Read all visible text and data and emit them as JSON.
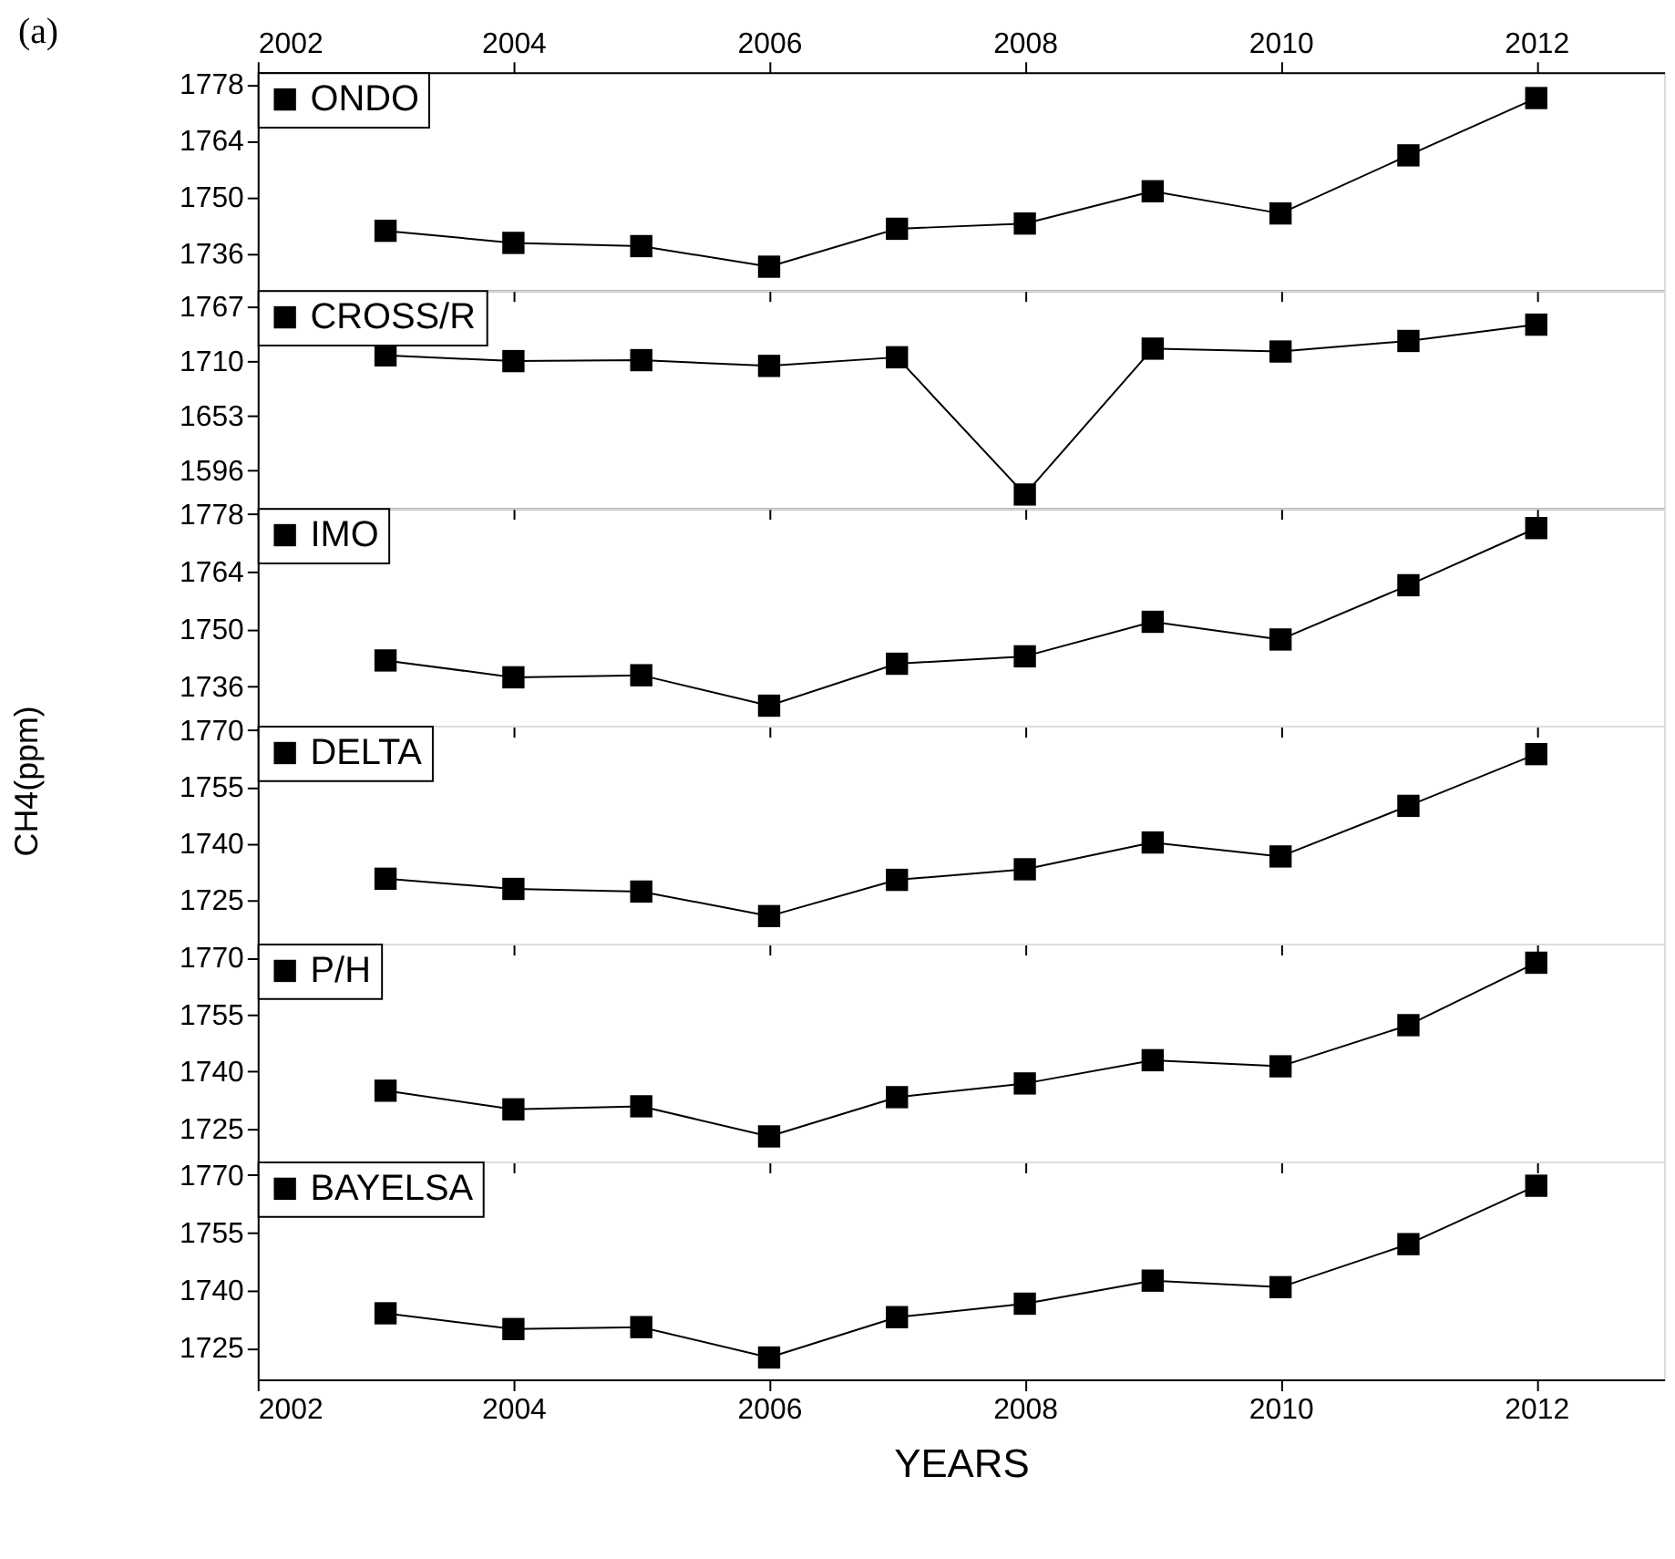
{
  "chart_data": [
    {
      "type": "line",
      "x": [
        2003,
        2004,
        2005,
        2006,
        2007,
        2008,
        2009,
        2010,
        2011,
        2012
      ],
      "series": [
        {
          "name": "ONDO",
          "color": "#000000",
          "values": [
            1741.7,
            1738.7,
            1737.9,
            1732.8,
            1742.2,
            1743.5,
            1751.5,
            1746,
            1760.4,
            1774.6
          ]
        }
      ],
      "xlim": [
        2002,
        2013
      ],
      "xticks": [
        2002,
        2004,
        2006,
        2008,
        2010,
        2012
      ],
      "x2lim": [
        2002,
        2013
      ],
      "x2ticks": [
        2002,
        2004,
        2006,
        2008,
        2010,
        2012
      ],
      "ylim": [
        1727,
        1781
      ],
      "yticks": [
        1736,
        1750,
        1764,
        1778
      ],
      "tick_labels": "y",
      "legend": "top left",
      "marker": "square",
      "line_style": "solid",
      "grid": false,
      "annotations": [
        "(a)"
      ]
    },
    {
      "type": "line",
      "x": [
        2003,
        2004,
        2005,
        2006,
        2007,
        2008,
        2009,
        2010,
        2011,
        2012
      ],
      "series": [
        {
          "name": "CROSS/R",
          "color": "#000000",
          "values": [
            1716,
            1710,
            1711,
            1705,
            1714,
            1571,
            1723,
            1720,
            1731,
            1748
          ]
        }
      ],
      "xlim": [
        2002,
        2013
      ],
      "xticks": [
        2002,
        2004,
        2006,
        2008,
        2010,
        2012
      ],
      "ylim": [
        1557,
        1784
      ],
      "yticks": [
        1596,
        1653,
        1710,
        1767
      ],
      "tick_labels": "y",
      "legend": "top left",
      "marker": "square",
      "line_style": "solid",
      "grid": false
    },
    {
      "type": "line",
      "x": [
        2003,
        2004,
        2005,
        2006,
        2007,
        2008,
        2009,
        2010,
        2011,
        2012
      ],
      "series": [
        {
          "name": "IMO",
          "color": "#000000",
          "values": [
            1742.4,
            1738.3,
            1738.8,
            1731.4,
            1741.6,
            1743.4,
            1751.8,
            1747.5,
            1760.7,
            1774.6
          ]
        }
      ],
      "xlim": [
        2002,
        2013
      ],
      "xticks": [
        2002,
        2004,
        2006,
        2008,
        2010,
        2012
      ],
      "ylim": [
        1726.5,
        1779.5
      ],
      "yticks": [
        1736,
        1750,
        1764,
        1778
      ],
      "tick_labels": "y",
      "legend": "top left",
      "marker": "square",
      "line_style": "solid",
      "grid": false
    },
    {
      "type": "line",
      "x": [
        2003,
        2004,
        2005,
        2006,
        2007,
        2008,
        2009,
        2010,
        2011,
        2012
      ],
      "series": [
        {
          "name": "DELTA",
          "color": "#000000",
          "values": [
            1730.7,
            1728,
            1727.3,
            1720.8,
            1730.4,
            1733.2,
            1740.3,
            1736.6,
            1750,
            1763.7
          ]
        }
      ],
      "xlim": [
        2002,
        2013
      ],
      "xticks": [
        2002,
        2004,
        2006,
        2008,
        2010,
        2012
      ],
      "ylim": [
        1713.5,
        1771.2
      ],
      "yticks": [
        1725,
        1740,
        1755,
        1770
      ],
      "ylabel": "CH4(ppm)",
      "tick_labels": "y",
      "legend": "top left",
      "marker": "square",
      "line_style": "solid",
      "grid": false
    },
    {
      "type": "line",
      "x": [
        2003,
        2004,
        2005,
        2006,
        2007,
        2008,
        2009,
        2010,
        2011,
        2012
      ],
      "series": [
        {
          "name": "P/H",
          "color": "#000000",
          "values": [
            1735,
            1730.1,
            1730.9,
            1723,
            1733.3,
            1736.9,
            1743,
            1741.4,
            1752.2,
            1768.6
          ]
        }
      ],
      "xlim": [
        2002,
        2013
      ],
      "xticks": [
        2002,
        2004,
        2006,
        2008,
        2010,
        2012
      ],
      "ylim": [
        1716.4,
        1773.6
      ],
      "yticks": [
        1725,
        1740,
        1755,
        1770
      ],
      "tick_labels": "y",
      "legend": "top left",
      "marker": "square",
      "line_style": "solid",
      "grid": false
    },
    {
      "type": "line",
      "x": [
        2003,
        2004,
        2005,
        2006,
        2007,
        2008,
        2009,
        2010,
        2011,
        2012
      ],
      "series": [
        {
          "name": "BAYELSA",
          "color": "#000000",
          "values": [
            1734,
            1729.9,
            1730.4,
            1722.5,
            1733,
            1736.5,
            1742.5,
            1740.8,
            1752,
            1767.2
          ]
        }
      ],
      "xlim": [
        2002,
        2013
      ],
      "xticks": [
        2002,
        2004,
        2006,
        2008,
        2010,
        2012
      ],
      "ylim": [
        1716.8,
        1773.5
      ],
      "yticks": [
        1725,
        1740,
        1755,
        1770
      ],
      "xlabel": "YEARS",
      "legend": "top left",
      "marker": "square",
      "line_style": "solid",
      "grid": false
    }
  ]
}
